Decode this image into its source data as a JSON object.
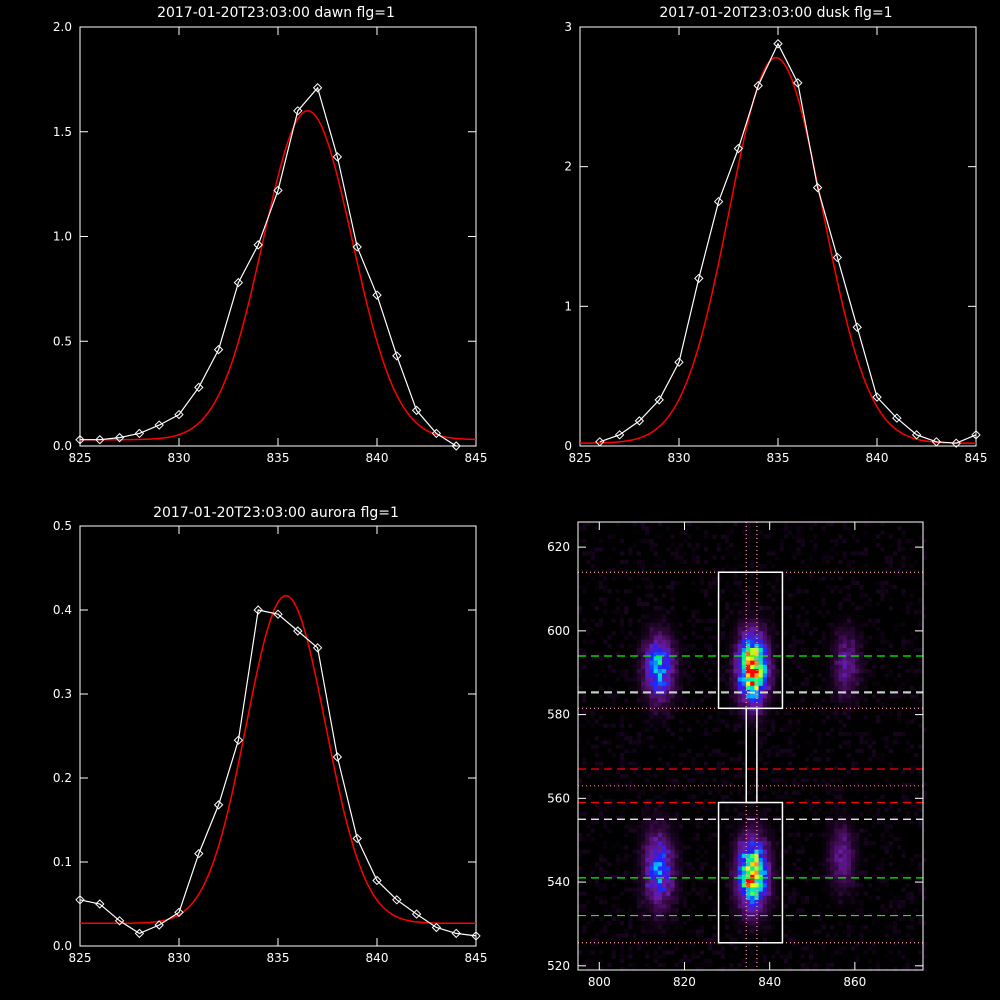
{
  "chart_data": [
    {
      "type": "line",
      "title": "2017-01-20T23:03:00 dawn flg=1",
      "xlim": [
        825,
        845
      ],
      "ylim": [
        0,
        2.0
      ],
      "xticks": [
        825,
        830,
        835,
        840,
        845
      ],
      "yticks": [
        0.0,
        0.5,
        1.0,
        1.5,
        2.0
      ],
      "yticklabels": [
        "0.0",
        "0.5",
        "1.0",
        "1.5",
        "2.0"
      ],
      "series": [
        {
          "role": "observed",
          "color": "#ffffff",
          "marker": "diamond",
          "x": [
            825,
            826,
            827,
            828,
            829,
            830,
            831,
            832,
            833,
            834,
            835,
            836,
            837,
            838,
            839,
            840,
            841,
            842,
            843,
            844
          ],
          "y": [
            0.03,
            0.03,
            0.04,
            0.06,
            0.1,
            0.15,
            0.28,
            0.46,
            0.78,
            0.96,
            1.22,
            1.6,
            1.71,
            1.38,
            0.95,
            0.72,
            0.43,
            0.17,
            0.06,
            0.0
          ]
        },
        {
          "role": "fit",
          "color": "#ff0000",
          "gaussian": {
            "a": 1.57,
            "mu": 836.5,
            "sigma": 2.25,
            "c": 0.03
          }
        }
      ]
    },
    {
      "type": "line",
      "title": "2017-01-20T23:03:00 dusk flg=1",
      "xlim": [
        825,
        845
      ],
      "ylim": [
        0,
        3
      ],
      "xticks": [
        825,
        830,
        835,
        840,
        845
      ],
      "yticks": [
        0,
        1,
        2,
        3
      ],
      "yticklabels": [
        "0",
        "1",
        "2",
        "3"
      ],
      "series": [
        {
          "role": "observed",
          "color": "#ffffff",
          "marker": "diamond",
          "x": [
            826,
            827,
            828,
            829,
            830,
            831,
            832,
            833,
            834,
            835,
            836,
            837,
            838,
            839,
            840,
            841,
            842,
            843,
            844,
            845
          ],
          "y": [
            0.03,
            0.08,
            0.18,
            0.33,
            0.6,
            1.2,
            1.75,
            2.13,
            2.58,
            2.88,
            2.6,
            1.85,
            1.35,
            0.85,
            0.35,
            0.2,
            0.08,
            0.03,
            0.02,
            0.08
          ]
        },
        {
          "role": "fit",
          "color": "#ff0000",
          "gaussian": {
            "a": 2.76,
            "mu": 834.9,
            "sigma": 2.35,
            "c": 0.02
          }
        }
      ]
    },
    {
      "type": "line",
      "title": "2017-01-20T23:03:00 aurora flg=1",
      "xlim": [
        825,
        845
      ],
      "ylim": [
        0,
        0.5
      ],
      "xticks": [
        825,
        830,
        835,
        840,
        845
      ],
      "yticks": [
        0.0,
        0.1,
        0.2,
        0.3,
        0.4,
        0.5
      ],
      "yticklabels": [
        "0.0",
        "0.1",
        "0.2",
        "0.3",
        "0.4",
        "0.5"
      ],
      "series": [
        {
          "role": "observed",
          "color": "#ffffff",
          "marker": "diamond",
          "x": [
            825,
            826,
            827,
            828,
            829,
            830,
            831,
            832,
            833,
            834,
            835,
            836,
            837,
            838,
            839,
            840,
            841,
            842,
            843,
            844,
            845
          ],
          "y": [
            0.055,
            0.05,
            0.03,
            0.015,
            0.025,
            0.04,
            0.11,
            0.168,
            0.245,
            0.4,
            0.395,
            0.375,
            0.355,
            0.225,
            0.128,
            0.078,
            0.055,
            0.038,
            0.022,
            0.015,
            0.012
          ]
        },
        {
          "role": "fit",
          "color": "#ff0000",
          "gaussian": {
            "a": 0.39,
            "mu": 835.4,
            "sigma": 2.0,
            "c": 0.027
          }
        }
      ]
    },
    {
      "type": "heatmap",
      "xlim": [
        795,
        876
      ],
      "ylim": [
        519,
        626
      ],
      "xticks": [
        800,
        820,
        840,
        860
      ],
      "yticks": [
        520,
        540,
        560,
        580,
        600,
        620
      ],
      "colormap": [
        "#000000",
        "#3a0a4a",
        "#6a1aa0",
        "#2020ff",
        "#00c0ff",
        "#00ff80",
        "#ffff00",
        "#ff0000"
      ],
      "blobs": [
        {
          "x": 836,
          "y": 591,
          "sx": 2.3,
          "sy": 5.5,
          "amp": 1.0
        },
        {
          "x": 836,
          "y": 542,
          "sx": 2.3,
          "sy": 5.5,
          "amp": 0.95
        },
        {
          "x": 814,
          "y": 591,
          "sx": 2.3,
          "sy": 5.0,
          "amp": 0.6
        },
        {
          "x": 814,
          "y": 543,
          "sx": 2.3,
          "sy": 6.0,
          "amp": 0.5
        },
        {
          "x": 858,
          "y": 592,
          "sx": 2.0,
          "sy": 5.0,
          "amp": 0.28
        },
        {
          "x": 857,
          "y": 546,
          "sx": 2.0,
          "sy": 5.0,
          "amp": 0.26
        }
      ],
      "boxes": [
        {
          "x0": 828,
          "x1": 843,
          "y0": 581.5,
          "y1": 614,
          "color": "#ffffff"
        },
        {
          "x0": 828,
          "x1": 843,
          "y0": 525.5,
          "y1": 559,
          "color": "#ffffff"
        },
        {
          "x0": 834.5,
          "x1": 837,
          "y0": 559,
          "y1": 581.5,
          "color": "#ffffff"
        }
      ],
      "hlines": [
        {
          "y": 614,
          "color": "#ffaaaa",
          "style": "dotted"
        },
        {
          "y": 594,
          "color": "#00ff00",
          "style": "dashed"
        },
        {
          "y": 585.5,
          "color": "#00ff00",
          "style": "dashed"
        },
        {
          "y": 585.2,
          "color": "#ffffff",
          "style": "dashed"
        },
        {
          "y": 581.5,
          "color": "#ffaaaa",
          "style": "dotted"
        },
        {
          "y": 567,
          "color": "#ff0000",
          "style": "dashed"
        },
        {
          "y": 563,
          "color": "#ff6666",
          "style": "dotted"
        },
        {
          "y": 559,
          "color": "#ff0000",
          "style": "dashed"
        },
        {
          "y": 555,
          "color": "#ffffff",
          "style": "dashed"
        },
        {
          "y": 541,
          "color": "#00ff00",
          "style": "dashed"
        },
        {
          "y": 532,
          "color": "#00ff00",
          "style": "dashed"
        },
        {
          "y": 525.5,
          "color": "#ffaaaa",
          "style": "dotted"
        }
      ],
      "vlines": [
        {
          "x": 834.5,
          "color": "#ffaaaa",
          "style": "dotted"
        },
        {
          "x": 837,
          "color": "#ffaaaa",
          "style": "dotted"
        }
      ]
    }
  ]
}
